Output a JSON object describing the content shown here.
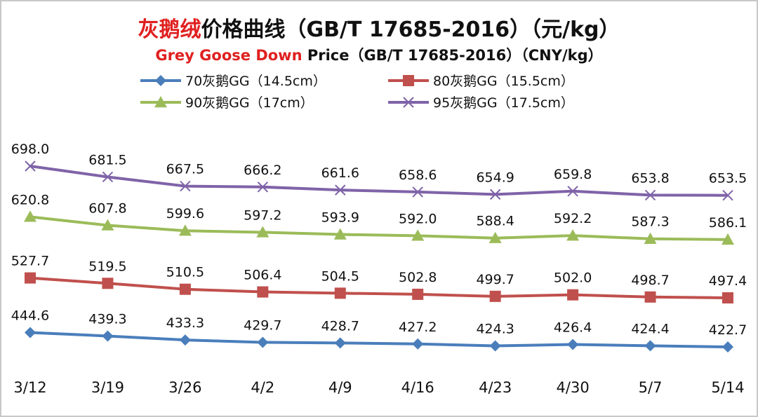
{
  "chart_data": {
    "type": "line",
    "title_cn": {
      "highlight": "灰鹅绒",
      "rest": "价格曲线（GB/T 17685-2016）（元/kg）"
    },
    "title_en": {
      "highlight": "Grey Goose Down",
      "rest": " Price（GB/T 17685-2016）（CNY/kg）"
    },
    "categories": [
      "3/12",
      "3/19",
      "3/26",
      "4/2",
      "4/9",
      "4/16",
      "4/23",
      "4/30",
      "5/7",
      "5/14"
    ],
    "ylim": [
      400,
      720
    ],
    "grid": false,
    "legend_position": "top",
    "series": [
      {
        "name": "70灰鹅GG（14.5cm）",
        "color": "#4a7ebb",
        "marker": "diamond",
        "values": [
          444.6,
          439.3,
          433.3,
          429.7,
          428.7,
          427.2,
          424.3,
          426.4,
          424.4,
          422.7
        ],
        "labels": [
          "444.6",
          "439.3",
          "433.3",
          "429.7",
          "428.7",
          "427.2",
          "424.3",
          "426.4",
          "424.4",
          "422.7"
        ]
      },
      {
        "name": "80灰鹅GG（15.5cm）",
        "color": "#c0504d",
        "marker": "square",
        "values": [
          527.7,
          519.5,
          510.5,
          506.4,
          504.5,
          502.8,
          499.7,
          502.0,
          498.7,
          497.4
        ],
        "labels": [
          "527.7",
          "519.5",
          "510.5",
          "506.4",
          "504.5",
          "502.8",
          "499.7",
          "502.0",
          "498.7",
          "497.4"
        ]
      },
      {
        "name": "90灰鹅GG（17cm）",
        "color": "#9bbb59",
        "marker": "triangle",
        "values": [
          620.8,
          607.8,
          599.6,
          597.2,
          593.9,
          592.0,
          588.4,
          592.2,
          587.3,
          586.1
        ],
        "labels": [
          "620.8",
          "607.8",
          "599.6",
          "597.2",
          "593.9",
          "592.0",
          "588.4",
          "592.2",
          "587.3",
          "586.1"
        ]
      },
      {
        "name": "95灰鹅GG（17.5cm）",
        "color": "#7f63a8",
        "marker": "x",
        "values": [
          698.0,
          681.5,
          667.5,
          666.2,
          661.6,
          658.6,
          654.9,
          659.8,
          653.8,
          653.5
        ],
        "labels": [
          "698.0",
          "681.5",
          "667.5",
          "666.2",
          "661.6",
          "658.6",
          "654.9",
          "659.8",
          "653.8",
          "653.5"
        ]
      }
    ],
    "colors": {
      "title_highlight": "#e02020",
      "title_text": "#111111",
      "frame": "#c8c8c8"
    }
  }
}
